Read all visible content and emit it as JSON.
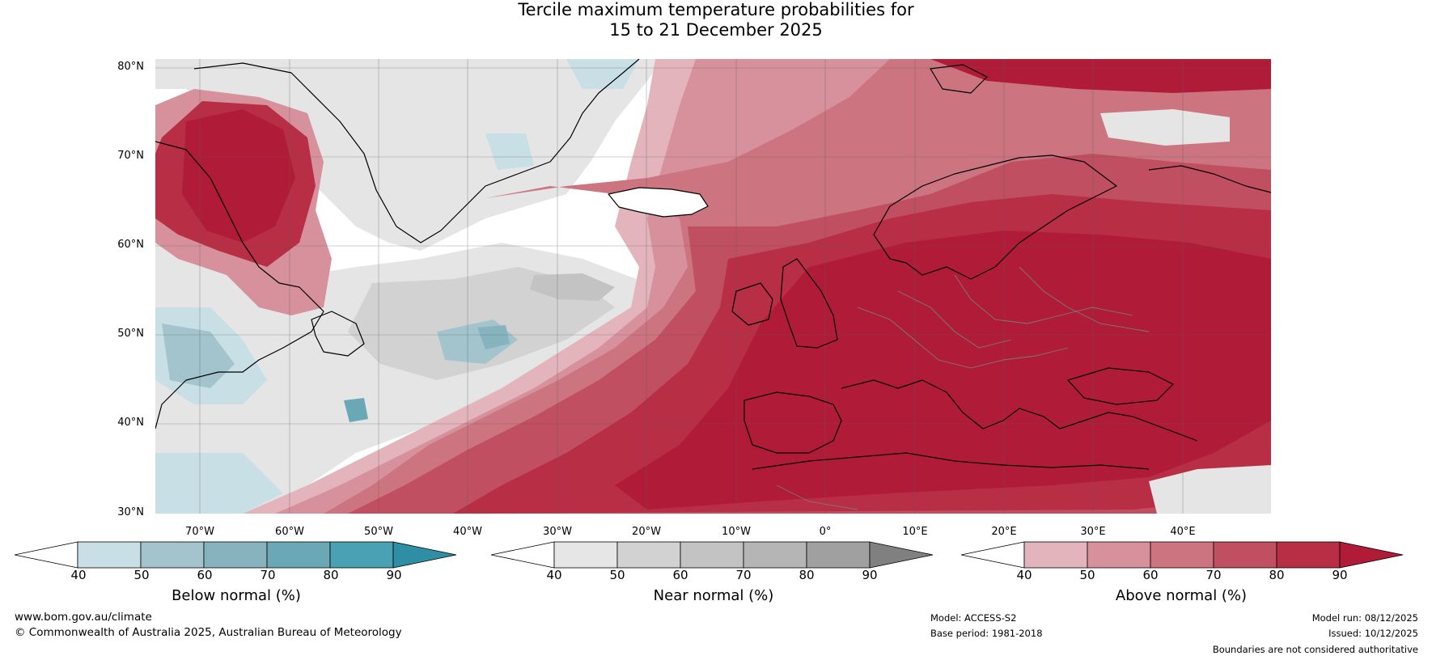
{
  "title": {
    "line1": "Tercile maximum temperature probabilities for",
    "line2": "15 to 21 December 2025"
  },
  "axes": {
    "lat_labels": [
      "80°N",
      "70°N",
      "60°N",
      "50°N",
      "40°N",
      "30°N"
    ],
    "lon_labels": [
      "70°W",
      "60°W",
      "50°W",
      "40°W",
      "30°W",
      "20°W",
      "10°W",
      "0°",
      "10°E",
      "20°E",
      "30°E",
      "40°E"
    ]
  },
  "colorbars": {
    "below": {
      "label": "Below normal (%)",
      "ticks": [
        "40",
        "50",
        "60",
        "70",
        "80",
        "90"
      ],
      "colors": [
        "#ffffff",
        "#c8dfe6",
        "#a3c4cc",
        "#86b3bd",
        "#6aa8b6",
        "#4aa1b3",
        "#2e8ea3"
      ]
    },
    "near": {
      "label": "Near normal (%)",
      "ticks": [
        "40",
        "50",
        "60",
        "70",
        "80",
        "90"
      ],
      "colors": [
        "#ffffff",
        "#e6e6e6",
        "#d2d2d2",
        "#c3c3c3",
        "#b4b5b4",
        "#a0a0a0",
        "#808080"
      ]
    },
    "above": {
      "label": "Above normal (%)",
      "ticks": [
        "40",
        "50",
        "60",
        "70",
        "80",
        "90"
      ],
      "colors": [
        "#ffffff",
        "#e3b4bc",
        "#d7919c",
        "#cc7480",
        "#c04f61",
        "#b72e45",
        "#b01c38"
      ]
    }
  },
  "footer": {
    "website": "www.bom.gov.au/climate",
    "copyright": "© Commonwealth of Australia 2025, Australian Bureau of Meteorology",
    "model": "Model: ACCESS-S2",
    "base_period": "Base period: 1981-2018",
    "model_run": "Model run: 08/12/2025",
    "issued": "Issued: 10/12/2025",
    "disclaimer": "Boundaries are not considered authoritative"
  }
}
